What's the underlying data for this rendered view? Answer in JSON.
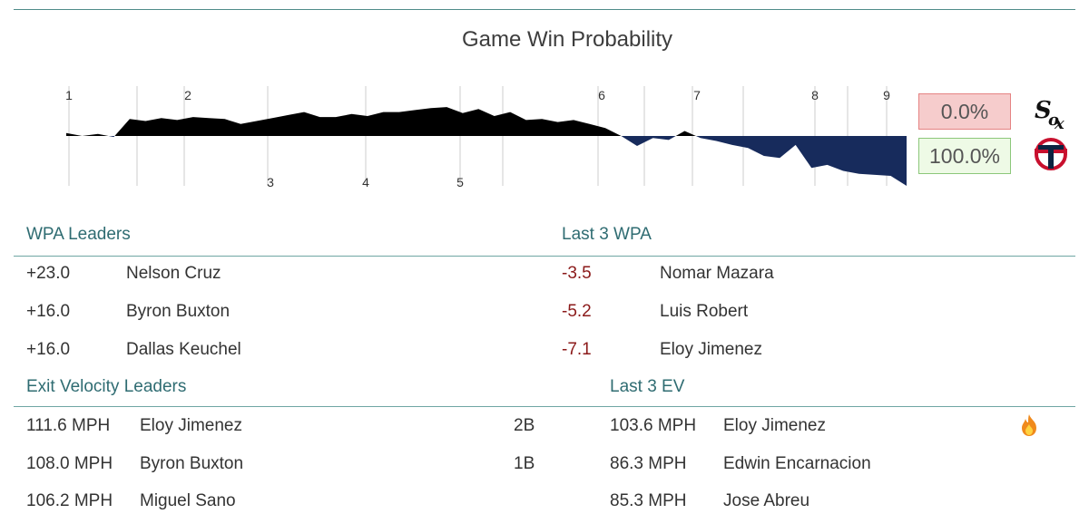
{
  "title": "Game Win Probability",
  "probabilities": {
    "away": {
      "value": "0.0%",
      "logo": "white-sox-logo"
    },
    "home": {
      "value": "100.0%",
      "logo": "twins-logo"
    }
  },
  "chart_data": {
    "type": "area",
    "title": "Game Win Probability",
    "xlabel": "",
    "ylabel": "",
    "innings_top": [
      "1",
      "2",
      "6",
      "7",
      "8",
      "9"
    ],
    "innings_bottom": [
      "3",
      "4",
      "5"
    ],
    "ylim": [
      -0.55,
      0.55
    ],
    "colors": {
      "away": "#000000",
      "home": "#172b5c"
    },
    "values": [
      0.03,
      0.0,
      0.02,
      -0.01,
      0.17,
      0.15,
      0.18,
      0.16,
      0.19,
      0.18,
      0.17,
      0.12,
      0.15,
      0.18,
      0.21,
      0.24,
      0.19,
      0.19,
      0.22,
      0.2,
      0.24,
      0.24,
      0.26,
      0.28,
      0.29,
      0.23,
      0.27,
      0.2,
      0.24,
      0.16,
      0.17,
      0.14,
      0.16,
      0.12,
      0.08,
      0.0,
      -0.1,
      -0.02,
      -0.04,
      0.05,
      -0.02,
      -0.05,
      -0.09,
      -0.12,
      -0.2,
      -0.22,
      -0.09,
      -0.32,
      -0.29,
      -0.35,
      -0.38,
      -0.39,
      -0.4,
      -0.5
    ]
  },
  "wpa": {
    "header": "WPA Leaders",
    "rows": [
      {
        "value": "+23.0",
        "name": "Nelson Cruz"
      },
      {
        "value": "+16.0",
        "name": "Byron Buxton"
      },
      {
        "value": "+16.0",
        "name": "Dallas Keuchel"
      }
    ]
  },
  "last3_wpa": {
    "header": "Last 3 WPA",
    "rows": [
      {
        "value": "-3.5",
        "name": "Nomar Mazara"
      },
      {
        "value": "-5.2",
        "name": "Luis Robert"
      },
      {
        "value": "-7.1",
        "name": "Eloy Jimenez"
      }
    ]
  },
  "ev": {
    "header": "Exit Velocity Leaders",
    "rows": [
      {
        "value": "111.6 MPH",
        "name": "Eloy Jimenez",
        "result": "2B"
      },
      {
        "value": "108.0 MPH",
        "name": "Byron Buxton",
        "result": "1B"
      },
      {
        "value": "106.2 MPH",
        "name": "Miguel Sano",
        "result": ""
      }
    ]
  },
  "last3_ev": {
    "header": "Last 3 EV",
    "rows": [
      {
        "value": "103.6 MPH",
        "name": "Eloy Jimenez",
        "icon": "fire-icon"
      },
      {
        "value": "86.3 MPH",
        "name": "Edwin Encarnacion",
        "icon": ""
      },
      {
        "value": "85.3 MPH",
        "name": "Jose Abreu",
        "icon": ""
      }
    ]
  }
}
